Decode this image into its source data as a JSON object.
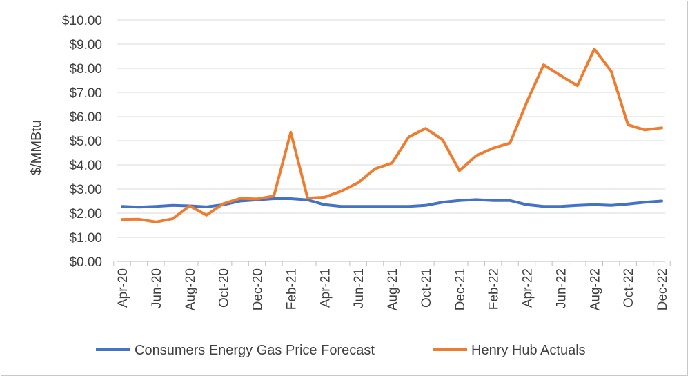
{
  "chart_data": {
    "type": "line",
    "ylabel": "$/MMBtu",
    "xlabel": "",
    "ylim": [
      0,
      10
    ],
    "yticks": [
      0,
      1,
      2,
      3,
      4,
      5,
      6,
      7,
      8,
      9,
      10
    ],
    "ytick_labels": [
      "$0.00",
      "$1.00",
      "$2.00",
      "$3.00",
      "$4.00",
      "$5.00",
      "$6.00",
      "$7.00",
      "$8.00",
      "$9.00",
      "$10.00"
    ],
    "x": [
      "Apr-20",
      "May-20",
      "Jun-20",
      "Jul-20",
      "Aug-20",
      "Sep-20",
      "Oct-20",
      "Nov-20",
      "Dec-20",
      "Jan-21",
      "Feb-21",
      "Mar-21",
      "Apr-21",
      "May-21",
      "Jun-21",
      "Jul-21",
      "Aug-21",
      "Sep-21",
      "Oct-21",
      "Nov-21",
      "Dec-21",
      "Jan-22",
      "Feb-22",
      "Mar-22",
      "Apr-22",
      "May-22",
      "Jun-22",
      "Jul-22",
      "Aug-22",
      "Sep-22",
      "Oct-22",
      "Nov-22",
      "Dec-22"
    ],
    "x_tick_labels": [
      "Apr-20",
      "Jun-20",
      "Aug-20",
      "Oct-20",
      "Dec-20",
      "Feb-21",
      "Apr-21",
      "Jun-21",
      "Aug-21",
      "Oct-21",
      "Dec-21",
      "Feb-22",
      "Apr-22",
      "Jun-22",
      "Aug-22",
      "Oct-22",
      "Dec-22"
    ],
    "grid": "horizontal",
    "legend_position": "bottom",
    "series": [
      {
        "name": "Consumers Energy Gas Price Forecast",
        "color": "#4472C4",
        "values": [
          2.28,
          2.25,
          2.28,
          2.32,
          2.3,
          2.26,
          2.35,
          2.5,
          2.55,
          2.6,
          2.6,
          2.55,
          2.35,
          2.28,
          2.28,
          2.28,
          2.28,
          2.28,
          2.32,
          2.45,
          2.52,
          2.56,
          2.52,
          2.52,
          2.35,
          2.28,
          2.28,
          2.32,
          2.35,
          2.32,
          2.38,
          2.45,
          2.5
        ]
      },
      {
        "name": "Henry Hub Actuals",
        "color": "#ED7D31",
        "values": [
          1.74,
          1.75,
          1.63,
          1.77,
          2.3,
          1.92,
          2.39,
          2.61,
          2.59,
          2.71,
          5.35,
          2.62,
          2.66,
          2.91,
          3.26,
          3.84,
          4.07,
          5.16,
          5.51,
          5.05,
          3.76,
          4.38,
          4.69,
          4.9,
          6.6,
          8.14,
          7.7,
          7.28,
          8.8,
          7.88,
          5.66,
          5.45,
          5.53
        ]
      }
    ]
  }
}
